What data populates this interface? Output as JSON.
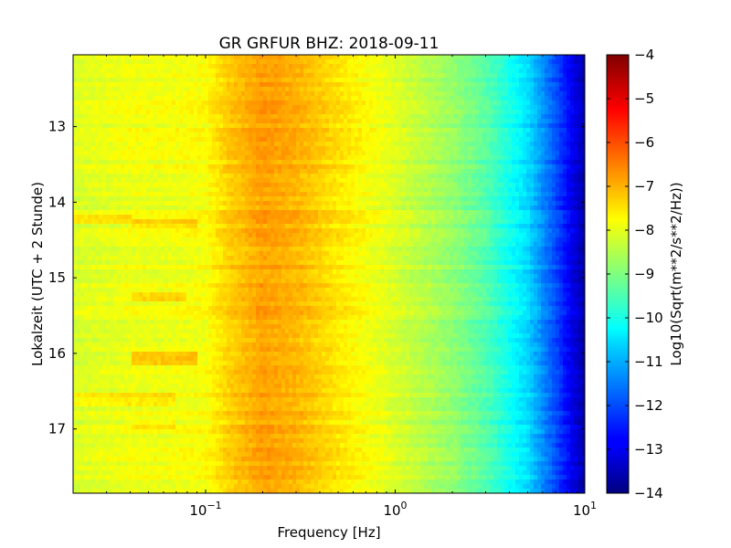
{
  "chart_data": {
    "type": "heatmap",
    "title": "GR GRFUR BHZ: 2018-09-11",
    "xlabel": "Frequency [Hz]",
    "ylabel": "Lokalzeit (UTC + 2 Stunde)",
    "x_scale": "log",
    "x_range_hz": [
      0.02,
      10
    ],
    "x_ticks": [
      {
        "value": 0.1,
        "base": "10",
        "exp": "−1"
      },
      {
        "value": 1,
        "base": "10",
        "exp": "0"
      },
      {
        "value": 10,
        "base": "10",
        "exp": "1"
      }
    ],
    "y_range_hours": [
      12.05,
      17.85
    ],
    "y_inverted": true,
    "y_ticks": [
      "13",
      "14",
      "15",
      "16",
      "17"
    ],
    "colorbar": {
      "label": "Log10(Sqrt(m**2/s**2/Hz))",
      "range": [
        -14,
        -4
      ],
      "ticks": [
        "−4",
        "−5",
        "−6",
        "−7",
        "−8",
        "−9",
        "−10",
        "−11",
        "−12",
        "−13",
        "−14"
      ],
      "colormap": "jet"
    },
    "spectrum_profile": [
      {
        "f": 0.02,
        "v": -8.1
      },
      {
        "f": 0.04,
        "v": -7.9
      },
      {
        "f": 0.06,
        "v": -7.9
      },
      {
        "f": 0.1,
        "v": -7.8
      },
      {
        "f": 0.13,
        "v": -7.3
      },
      {
        "f": 0.2,
        "v": -6.8
      },
      {
        "f": 0.3,
        "v": -7.0
      },
      {
        "f": 0.5,
        "v": -7.5
      },
      {
        "f": 1,
        "v": -8.1
      },
      {
        "f": 2,
        "v": -8.8
      },
      {
        "f": 3,
        "v": -9.4
      },
      {
        "f": 5,
        "v": -10.6
      },
      {
        "f": 7,
        "v": -12.0
      },
      {
        "f": 10,
        "v": -13.6
      }
    ],
    "time_anomalies": [
      {
        "t0": 14.15,
        "t1": 14.3,
        "f0": 0.02,
        "f1": 0.04,
        "dv": 0.4
      },
      {
        "t0": 14.25,
        "t1": 14.35,
        "f0": 0.04,
        "f1": 0.09,
        "dv": 0.5
      },
      {
        "t0": 15.2,
        "t1": 15.3,
        "f0": 0.04,
        "f1": 0.08,
        "dv": 0.5
      },
      {
        "t0": 16.0,
        "t1": 16.15,
        "f0": 0.04,
        "f1": 0.09,
        "dv": 0.8
      },
      {
        "t0": 16.5,
        "t1": 16.7,
        "f0": 0.02,
        "f1": 0.07,
        "dv": 0.4
      },
      {
        "t0": 16.9,
        "t1": 17.0,
        "f0": 0.04,
        "f1": 0.07,
        "dv": 0.3
      }
    ]
  }
}
